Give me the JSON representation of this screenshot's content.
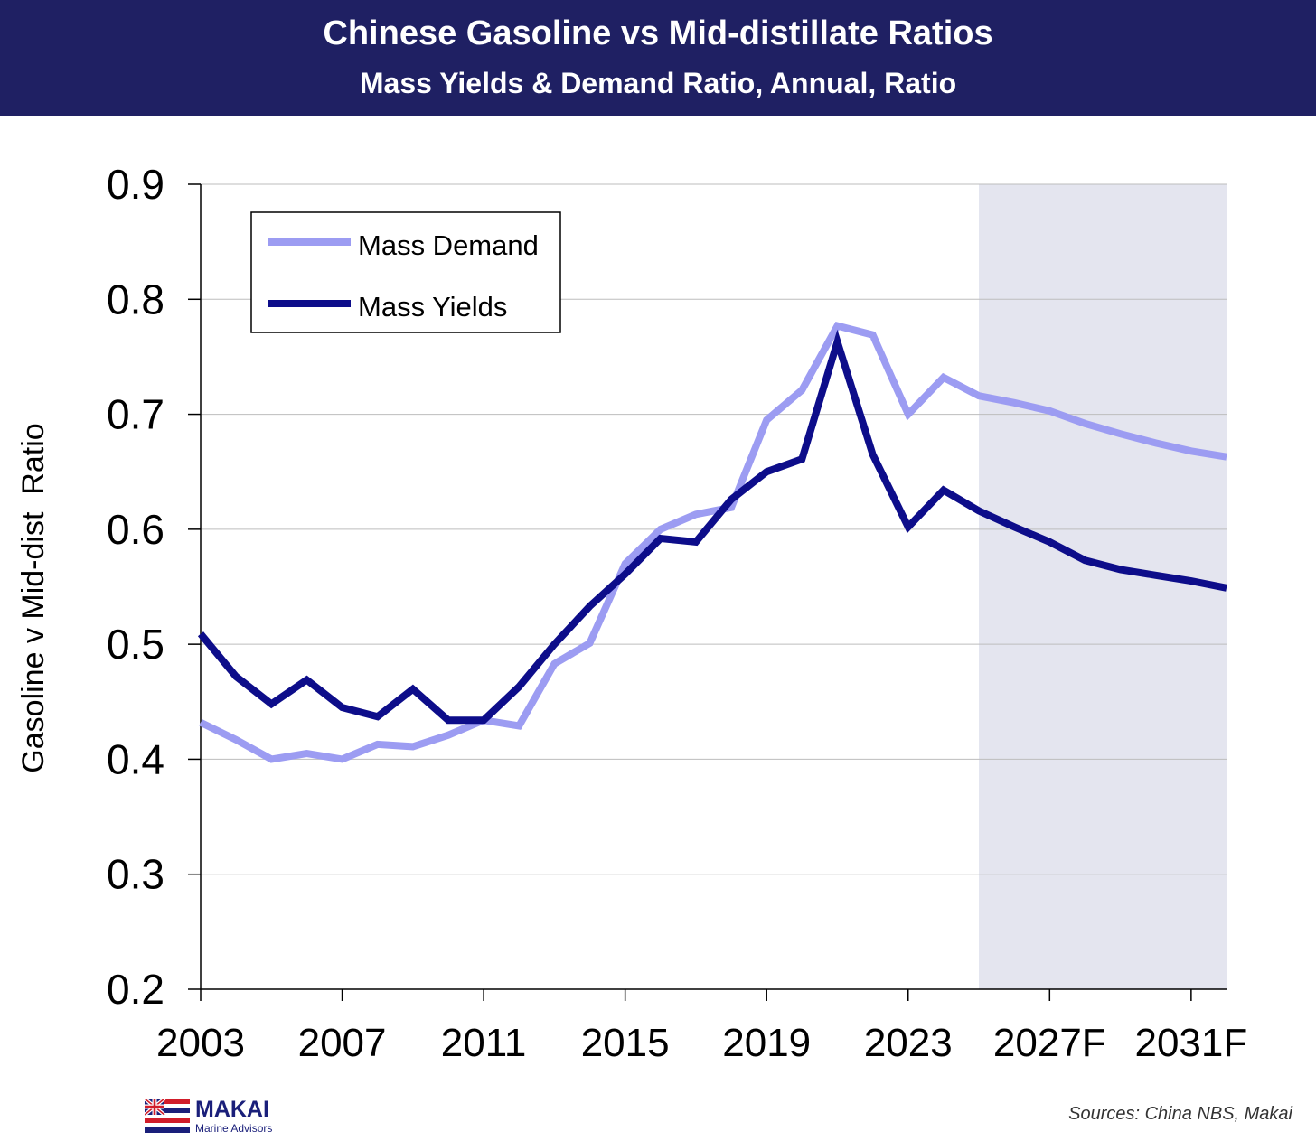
{
  "header": {
    "title": "Chinese Gasoline vs Mid-distillate Ratios",
    "subtitle": "Mass Yields & Demand Ratio, Annual, Ratio"
  },
  "chart_data": {
    "type": "line",
    "title": "Chinese Gasoline vs Mid-distillate Ratios",
    "subtitle": "Mass Yields & Demand Ratio, Annual, Ratio",
    "ylabel": "Gasoline v Mid-dist  Ratio",
    "xlabel": "",
    "ylim": [
      0.2,
      0.9
    ],
    "yticks": [
      "0.2",
      "0.3",
      "0.4",
      "0.5",
      "0.6",
      "0.7",
      "0.8",
      "0.9"
    ],
    "x": [
      "2003",
      "2004",
      "2005",
      "2006",
      "2007",
      "2008",
      "2009",
      "2010",
      "2011",
      "2012",
      "2013",
      "2014",
      "2015",
      "2016",
      "2017",
      "2018",
      "2019",
      "2020",
      "2021",
      "2022",
      "2023",
      "2024",
      "2025F",
      "2026F",
      "2027F",
      "2028F",
      "2029F",
      "2030F",
      "2031F",
      "2032F"
    ],
    "xtick_labels": [
      "2003",
      "2007",
      "2011",
      "2015",
      "2019",
      "2023",
      "2027F",
      "2031F"
    ],
    "forecast_shading": {
      "from": "2025F",
      "to": "2032F",
      "color": "#e4e5ef"
    },
    "grid": true,
    "legend_position": "top-left",
    "series": [
      {
        "name": "Mass Demand",
        "color": "#9c9cf2",
        "values": [
          0.432,
          0.417,
          0.4,
          0.405,
          0.4,
          0.413,
          0.411,
          0.421,
          0.434,
          0.429,
          0.483,
          0.501,
          0.57,
          0.6,
          0.613,
          0.619,
          0.695,
          0.721,
          0.777,
          0.769,
          0.7,
          0.732,
          0.716,
          0.71,
          0.703,
          0.692,
          0.683,
          0.675,
          0.668,
          0.663
        ]
      },
      {
        "name": "Mass Yields",
        "color": "#0d0d8a",
        "values": [
          0.509,
          0.472,
          0.448,
          0.469,
          0.445,
          0.437,
          0.461,
          0.434,
          0.434,
          0.463,
          0.5,
          0.533,
          0.561,
          0.592,
          0.589,
          0.626,
          0.65,
          0.661,
          0.763,
          0.665,
          0.602,
          0.634,
          0.616,
          0.602,
          0.589,
          0.573,
          0.565,
          0.56,
          0.555,
          0.549
        ]
      }
    ]
  },
  "footer": {
    "logo_name": "MAKAI",
    "logo_sub": "Marine Advisors",
    "source": "Sources: China NBS, Makai"
  }
}
